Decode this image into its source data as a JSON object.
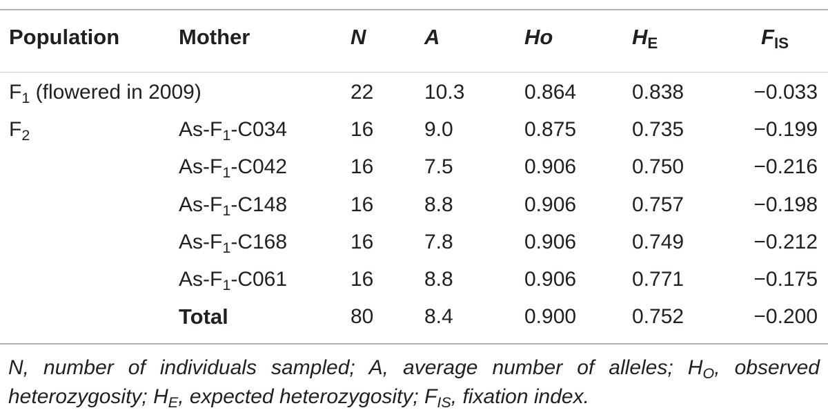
{
  "table": {
    "headers": {
      "population": "Population",
      "mother": "Mother",
      "n": "N",
      "a": "A",
      "ho": "Ho",
      "he_main": "H",
      "he_sub": "E",
      "fis_main": "F",
      "fis_sub": "IS"
    },
    "rows": [
      {
        "pop_main": "F",
        "pop_sub": "1",
        "pop_rest": " (flowered in 2009)",
        "mother": "",
        "n": "22",
        "a": "10.3",
        "ho": "0.864",
        "he": "0.838",
        "fis": "−0.033"
      },
      {
        "pop_main": "F",
        "pop_sub": "2",
        "pop_rest": "",
        "mother_pre": "As-F",
        "mother_sub": "1",
        "mother_post": "-C034",
        "n": "16",
        "a": "9.0",
        "ho": "0.875",
        "he": "0.735",
        "fis": "−0.199"
      },
      {
        "pop_main": "",
        "pop_sub": "",
        "pop_rest": "",
        "mother_pre": "As-F",
        "mother_sub": "1",
        "mother_post": "-C042",
        "n": "16",
        "a": "7.5",
        "ho": "0.906",
        "he": "0.750",
        "fis": "−0.216"
      },
      {
        "pop_main": "",
        "pop_sub": "",
        "pop_rest": "",
        "mother_pre": "As-F",
        "mother_sub": "1",
        "mother_post": "-C148",
        "n": "16",
        "a": "8.8",
        "ho": "0.906",
        "he": "0.757",
        "fis": "−0.198"
      },
      {
        "pop_main": "",
        "pop_sub": "",
        "pop_rest": "",
        "mother_pre": "As-F",
        "mother_sub": "1",
        "mother_post": "-C168",
        "n": "16",
        "a": "7.8",
        "ho": "0.906",
        "he": "0.749",
        "fis": "−0.212"
      },
      {
        "pop_main": "",
        "pop_sub": "",
        "pop_rest": "",
        "mother_pre": "As-F",
        "mother_sub": "1",
        "mother_post": "-C061",
        "n": "16",
        "a": "8.8",
        "ho": "0.906",
        "he": "0.771",
        "fis": "−0.175"
      },
      {
        "pop_main": "",
        "pop_sub": "",
        "pop_rest": "",
        "mother_total": "Total",
        "n": "80",
        "a": "8.4",
        "ho": "0.900",
        "he": "0.752",
        "fis": "−0.200"
      }
    ]
  },
  "footnote": {
    "p1": "N, number of individuals sampled; A, average number of alleles; H",
    "p1_sub": "O",
    "p2": ", observed heterozygosity; H",
    "p2_sub": "E",
    "p3": ", expected heterozygosity; F",
    "p3_sub": "IS",
    "p4": ", fixation index."
  }
}
